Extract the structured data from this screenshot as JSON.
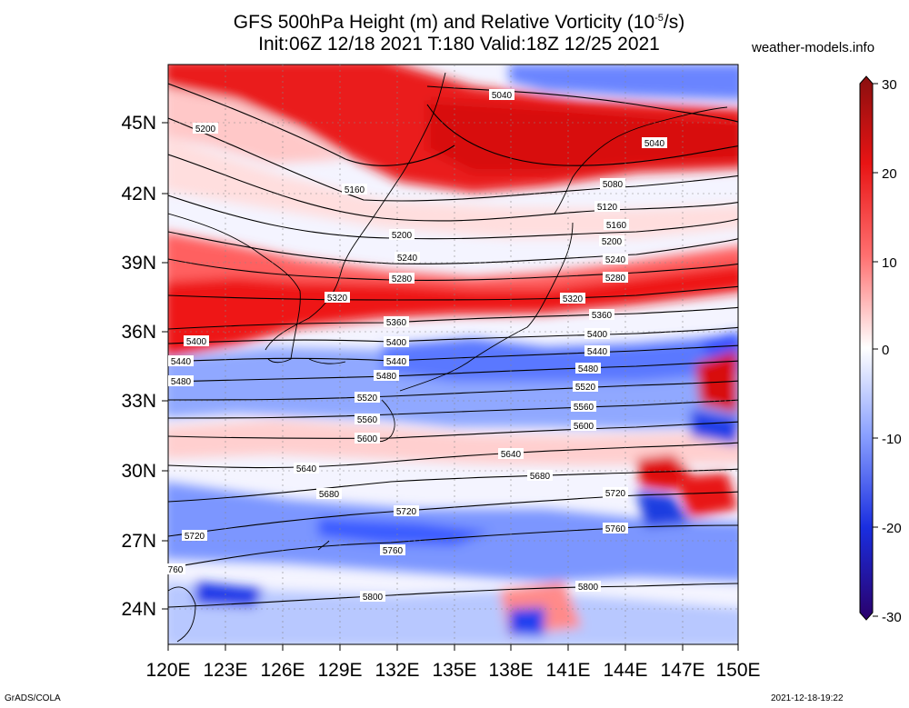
{
  "title_line1": "GFS 500hPa Height (m) and Relative Vorticity (10",
  "title_exp": "-5",
  "title_tail": "/s)",
  "title_line2": "Init:06Z 12/18 2021 T:180 Valid:18Z 12/25 2021",
  "brand": "weather-models.info",
  "footer_left": "GrADS/COLA",
  "footer_right": "2021-12-18-19:22",
  "lat_labels": [
    "45N",
    "42N",
    "39N",
    "36N",
    "33N",
    "30N",
    "27N",
    "24N"
  ],
  "lon_labels": [
    "120E",
    "123E",
    "126E",
    "129E",
    "132E",
    "135E",
    "138E",
    "141E",
    "144E",
    "147E",
    "150E"
  ],
  "colorbar_labels": [
    "30",
    "20",
    "10",
    "0",
    "-10",
    "-20",
    "-30"
  ],
  "colors": {
    "pos_max": "#a01414",
    "pos_mid": "#ff1a1a",
    "pos_low": "#ffb4b4",
    "neutral": "#ffffff",
    "neg_low": "#b4c8ff",
    "neg_mid": "#1a3cff",
    "neg_max": "#30007a"
  },
  "contour_labels": [
    {
      "text": "5040"
    },
    {
      "text": "5040"
    },
    {
      "text": "5080"
    },
    {
      "text": "5120"
    },
    {
      "text": "5160"
    },
    {
      "text": "5160"
    },
    {
      "text": "5200"
    },
    {
      "text": "5200"
    },
    {
      "text": "5200"
    },
    {
      "text": "5240"
    },
    {
      "text": "5240"
    },
    {
      "text": "5280"
    },
    {
      "text": "5280"
    },
    {
      "text": "5320"
    },
    {
      "text": "5320"
    },
    {
      "text": "5360"
    },
    {
      "text": "5360"
    },
    {
      "text": "5400"
    },
    {
      "text": "5400"
    },
    {
      "text": "5400"
    },
    {
      "text": "5440"
    },
    {
      "text": "5440"
    },
    {
      "text": "5440"
    },
    {
      "text": "5480"
    },
    {
      "text": "5480"
    },
    {
      "text": "5480"
    },
    {
      "text": "5520"
    },
    {
      "text": "5520"
    },
    {
      "text": "5560"
    },
    {
      "text": "5560"
    },
    {
      "text": "5600"
    },
    {
      "text": "5600"
    },
    {
      "text": "5640"
    },
    {
      "text": "5640"
    },
    {
      "text": "5680"
    },
    {
      "text": "5680"
    },
    {
      "text": "5720"
    },
    {
      "text": "5720"
    },
    {
      "text": "5720"
    },
    {
      "text": "5760"
    },
    {
      "text": "5760"
    },
    {
      "text": "760"
    },
    {
      "text": "5800"
    },
    {
      "text": "5800"
    }
  ]
}
